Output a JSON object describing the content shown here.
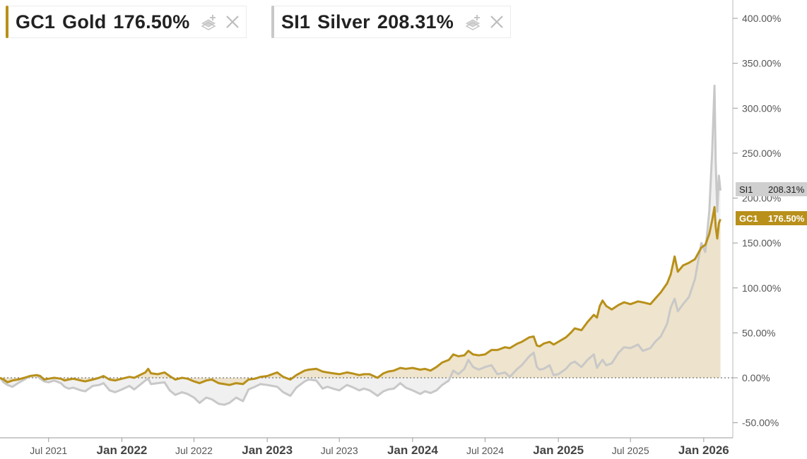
{
  "legend": [
    {
      "ticker": "GC1",
      "name": "Gold",
      "change": "176.50%",
      "color": "#b8901a"
    },
    {
      "ticker": "SI1",
      "name": "Silver",
      "change": "208.31%",
      "color": "#c8c8c8"
    }
  ],
  "chart_data": {
    "type": "line",
    "y_unit": "percent change",
    "yticks": [
      "400.00%",
      "350.00%",
      "300.00%",
      "250.00%",
      "200.00%",
      "150.00%",
      "100.00%",
      "50.00%",
      "0.00%",
      "-50.00%"
    ],
    "ytick_values": [
      400,
      350,
      300,
      250,
      200,
      150,
      100,
      50,
      0,
      -50
    ],
    "ylim": [
      -65,
      420
    ],
    "xlim": [
      "2021-03-01",
      "2026-03-15"
    ],
    "xticks": [
      {
        "label": "Jul 2021",
        "date": "2021-07-01",
        "major": false
      },
      {
        "label": "Jan 2022",
        "date": "2022-01-01",
        "major": true
      },
      {
        "label": "Jul 2022",
        "date": "2022-07-01",
        "major": false
      },
      {
        "label": "Jan 2023",
        "date": "2023-01-01",
        "major": true
      },
      {
        "label": "Jul 2023",
        "date": "2023-07-01",
        "major": false
      },
      {
        "label": "Jan 2024",
        "date": "2024-01-01",
        "major": true
      },
      {
        "label": "Jul 2024",
        "date": "2024-07-01",
        "major": false
      },
      {
        "label": "Jan 2025",
        "date": "2025-01-01",
        "major": true
      },
      {
        "label": "Jul 2025",
        "date": "2025-07-01",
        "major": false
      },
      {
        "label": "Jan 2026",
        "date": "2026-01-01",
        "major": true
      }
    ],
    "zero_line": true,
    "series": [
      {
        "name": "GC1",
        "color": "#b8901a",
        "fill": "#ecdfc4",
        "end_label": "176.50%",
        "points": [
          [
            "2021-03-01",
            0
          ],
          [
            "2021-03-10",
            -2
          ],
          [
            "2021-03-20",
            -5
          ],
          [
            "2021-04-01",
            -3
          ],
          [
            "2021-04-15",
            -2
          ],
          [
            "2021-05-01",
            0
          ],
          [
            "2021-05-15",
            2
          ],
          [
            "2021-06-01",
            3
          ],
          [
            "2021-06-10",
            2
          ],
          [
            "2021-06-20",
            -2
          ],
          [
            "2021-07-01",
            -1
          ],
          [
            "2021-07-15",
            0
          ],
          [
            "2021-08-01",
            -1
          ],
          [
            "2021-08-10",
            -3
          ],
          [
            "2021-08-20",
            -2
          ],
          [
            "2021-09-01",
            -1
          ],
          [
            "2021-09-20",
            -3
          ],
          [
            "2021-10-01",
            -4
          ],
          [
            "2021-10-20",
            -2
          ],
          [
            "2021-11-05",
            0
          ],
          [
            "2021-11-16",
            2
          ],
          [
            "2021-12-01",
            -2
          ],
          [
            "2021-12-15",
            -3
          ],
          [
            "2022-01-01",
            -1
          ],
          [
            "2022-01-20",
            1
          ],
          [
            "2022-02-01",
            0
          ],
          [
            "2022-02-15",
            3
          ],
          [
            "2022-03-01",
            6
          ],
          [
            "2022-03-08",
            10
          ],
          [
            "2022-03-15",
            5
          ],
          [
            "2022-04-01",
            4
          ],
          [
            "2022-04-18",
            6
          ],
          [
            "2022-05-01",
            2
          ],
          [
            "2022-05-15",
            -2
          ],
          [
            "2022-06-01",
            0
          ],
          [
            "2022-06-15",
            -1
          ],
          [
            "2022-07-01",
            -4
          ],
          [
            "2022-07-15",
            -6
          ],
          [
            "2022-08-01",
            -3
          ],
          [
            "2022-08-15",
            -2
          ],
          [
            "2022-09-01",
            -6
          ],
          [
            "2022-09-15",
            -7
          ],
          [
            "2022-09-28",
            -8
          ],
          [
            "2022-10-15",
            -6
          ],
          [
            "2022-11-01",
            -7
          ],
          [
            "2022-11-15",
            -2
          ],
          [
            "2022-12-01",
            -1
          ],
          [
            "2022-12-15",
            1
          ],
          [
            "2023-01-01",
            2
          ],
          [
            "2023-01-26",
            6
          ],
          [
            "2023-02-10",
            1
          ],
          [
            "2023-02-28",
            -2
          ],
          [
            "2023-03-15",
            3
          ],
          [
            "2023-04-05",
            8
          ],
          [
            "2023-04-15",
            9
          ],
          [
            "2023-05-04",
            10
          ],
          [
            "2023-05-20",
            7
          ],
          [
            "2023-06-01",
            6
          ],
          [
            "2023-06-15",
            5
          ],
          [
            "2023-07-01",
            4
          ],
          [
            "2023-07-20",
            6
          ],
          [
            "2023-08-01",
            5
          ],
          [
            "2023-08-20",
            3
          ],
          [
            "2023-09-01",
            4
          ],
          [
            "2023-09-15",
            4
          ],
          [
            "2023-10-05",
            0
          ],
          [
            "2023-10-20",
            5
          ],
          [
            "2023-11-01",
            7
          ],
          [
            "2023-11-15",
            8
          ],
          [
            "2023-12-01",
            11
          ],
          [
            "2023-12-15",
            10
          ],
          [
            "2024-01-01",
            11
          ],
          [
            "2024-01-20",
            9
          ],
          [
            "2024-02-01",
            10
          ],
          [
            "2024-02-15",
            8
          ],
          [
            "2024-03-01",
            12
          ],
          [
            "2024-03-15",
            17
          ],
          [
            "2024-04-01",
            20
          ],
          [
            "2024-04-12",
            26
          ],
          [
            "2024-04-25",
            24
          ],
          [
            "2024-05-10",
            25
          ],
          [
            "2024-05-20",
            30
          ],
          [
            "2024-06-01",
            26
          ],
          [
            "2024-06-15",
            25
          ],
          [
            "2024-07-01",
            26
          ],
          [
            "2024-07-17",
            31
          ],
          [
            "2024-08-01",
            31
          ],
          [
            "2024-08-20",
            34
          ],
          [
            "2024-09-01",
            33
          ],
          [
            "2024-09-20",
            38
          ],
          [
            "2024-10-01",
            40
          ],
          [
            "2024-10-20",
            45
          ],
          [
            "2024-10-31",
            46
          ],
          [
            "2024-11-08",
            36
          ],
          [
            "2024-11-15",
            35
          ],
          [
            "2024-11-25",
            38
          ],
          [
            "2024-12-10",
            40
          ],
          [
            "2024-12-20",
            37
          ],
          [
            "2025-01-01",
            40
          ],
          [
            "2025-01-20",
            45
          ],
          [
            "2025-02-01",
            50
          ],
          [
            "2025-02-11",
            55
          ],
          [
            "2025-02-28",
            53
          ],
          [
            "2025-03-15",
            62
          ],
          [
            "2025-03-31",
            70
          ],
          [
            "2025-04-08",
            67
          ],
          [
            "2025-04-15",
            80
          ],
          [
            "2025-04-22",
            86
          ],
          [
            "2025-05-01",
            80
          ],
          [
            "2025-05-15",
            76
          ],
          [
            "2025-06-01",
            81
          ],
          [
            "2025-06-15",
            84
          ],
          [
            "2025-07-01",
            82
          ],
          [
            "2025-07-20",
            85
          ],
          [
            "2025-08-01",
            84
          ],
          [
            "2025-08-20",
            82
          ],
          [
            "2025-09-01",
            88
          ],
          [
            "2025-09-15",
            95
          ],
          [
            "2025-10-01",
            105
          ],
          [
            "2025-10-10",
            115
          ],
          [
            "2025-10-20",
            135
          ],
          [
            "2025-10-28",
            118
          ],
          [
            "2025-11-10",
            125
          ],
          [
            "2025-11-25",
            128
          ],
          [
            "2025-12-10",
            132
          ],
          [
            "2025-12-26",
            145
          ],
          [
            "2026-01-05",
            148
          ],
          [
            "2026-01-15",
            160
          ],
          [
            "2026-01-22",
            175
          ],
          [
            "2026-01-28",
            190
          ],
          [
            "2026-01-31",
            168
          ],
          [
            "2026-02-04",
            155
          ],
          [
            "2026-02-08",
            172
          ],
          [
            "2026-02-12",
            176.5
          ]
        ]
      },
      {
        "name": "SI1",
        "color": "#c8c8c8",
        "fill": "#eeeeee",
        "end_label": "208.31%",
        "points": [
          [
            "2021-03-01",
            0
          ],
          [
            "2021-03-10",
            -5
          ],
          [
            "2021-03-20",
            -8
          ],
          [
            "2021-04-01",
            -10
          ],
          [
            "2021-04-15",
            -6
          ],
          [
            "2021-05-01",
            -2
          ],
          [
            "2021-05-15",
            2
          ],
          [
            "2021-06-01",
            3
          ],
          [
            "2021-06-10",
            -1
          ],
          [
            "2021-06-20",
            -4
          ],
          [
            "2021-07-01",
            -5
          ],
          [
            "2021-07-15",
            -3
          ],
          [
            "2021-08-01",
            -6
          ],
          [
            "2021-08-10",
            -10
          ],
          [
            "2021-08-20",
            -12
          ],
          [
            "2021-09-01",
            -11
          ],
          [
            "2021-09-20",
            -14
          ],
          [
            "2021-10-01",
            -15
          ],
          [
            "2021-10-20",
            -9
          ],
          [
            "2021-11-05",
            -8
          ],
          [
            "2021-11-16",
            -6
          ],
          [
            "2021-12-01",
            -14
          ],
          [
            "2021-12-15",
            -16
          ],
          [
            "2022-01-01",
            -13
          ],
          [
            "2022-01-20",
            -9
          ],
          [
            "2022-02-01",
            -13
          ],
          [
            "2022-02-15",
            -8
          ],
          [
            "2022-03-01",
            -3
          ],
          [
            "2022-03-08",
            -1
          ],
          [
            "2022-03-15",
            -7
          ],
          [
            "2022-04-01",
            -6
          ],
          [
            "2022-04-18",
            -5
          ],
          [
            "2022-05-01",
            -14
          ],
          [
            "2022-05-15",
            -19
          ],
          [
            "2022-06-01",
            -16
          ],
          [
            "2022-06-15",
            -18
          ],
          [
            "2022-07-01",
            -22
          ],
          [
            "2022-07-15",
            -28
          ],
          [
            "2022-08-01",
            -22
          ],
          [
            "2022-08-15",
            -24
          ],
          [
            "2022-09-01",
            -29
          ],
          [
            "2022-09-15",
            -30
          ],
          [
            "2022-09-28",
            -28
          ],
          [
            "2022-10-15",
            -22
          ],
          [
            "2022-11-01",
            -26
          ],
          [
            "2022-11-15",
            -13
          ],
          [
            "2022-12-01",
            -10
          ],
          [
            "2022-12-15",
            -7
          ],
          [
            "2023-01-01",
            -8
          ],
          [
            "2023-01-26",
            -10
          ],
          [
            "2023-02-10",
            -16
          ],
          [
            "2023-02-28",
            -20
          ],
          [
            "2023-03-15",
            -11
          ],
          [
            "2023-04-05",
            -4
          ],
          [
            "2023-04-15",
            -2
          ],
          [
            "2023-05-04",
            -3
          ],
          [
            "2023-05-20",
            -12
          ],
          [
            "2023-06-01",
            -10
          ],
          [
            "2023-06-15",
            -12
          ],
          [
            "2023-07-01",
            -14
          ],
          [
            "2023-07-20",
            -8
          ],
          [
            "2023-08-01",
            -10
          ],
          [
            "2023-08-20",
            -14
          ],
          [
            "2023-09-01",
            -12
          ],
          [
            "2023-09-15",
            -14
          ],
          [
            "2023-10-05",
            -20
          ],
          [
            "2023-10-20",
            -15
          ],
          [
            "2023-11-01",
            -13
          ],
          [
            "2023-11-15",
            -12
          ],
          [
            "2023-12-01",
            -6
          ],
          [
            "2023-12-15",
            -11
          ],
          [
            "2024-01-01",
            -14
          ],
          [
            "2024-01-20",
            -18
          ],
          [
            "2024-02-01",
            -15
          ],
          [
            "2024-02-15",
            -17
          ],
          [
            "2024-03-01",
            -14
          ],
          [
            "2024-03-15",
            -8
          ],
          [
            "2024-04-01",
            -3
          ],
          [
            "2024-04-12",
            8
          ],
          [
            "2024-04-25",
            4
          ],
          [
            "2024-05-10",
            10
          ],
          [
            "2024-05-20",
            20
          ],
          [
            "2024-06-01",
            12
          ],
          [
            "2024-06-15",
            9
          ],
          [
            "2024-07-01",
            12
          ],
          [
            "2024-07-17",
            14
          ],
          [
            "2024-08-01",
            4
          ],
          [
            "2024-08-20",
            6
          ],
          [
            "2024-09-01",
            1
          ],
          [
            "2024-09-20",
            10
          ],
          [
            "2024-10-01",
            14
          ],
          [
            "2024-10-20",
            24
          ],
          [
            "2024-10-31",
            28
          ],
          [
            "2024-11-08",
            12
          ],
          [
            "2024-11-15",
            9
          ],
          [
            "2024-11-25",
            10
          ],
          [
            "2024-12-10",
            14
          ],
          [
            "2024-12-20",
            3
          ],
          [
            "2025-01-01",
            4
          ],
          [
            "2025-01-20",
            10
          ],
          [
            "2025-02-01",
            16
          ],
          [
            "2025-02-11",
            18
          ],
          [
            "2025-02-28",
            12
          ],
          [
            "2025-03-15",
            20
          ],
          [
            "2025-03-31",
            26
          ],
          [
            "2025-04-08",
            11
          ],
          [
            "2025-04-15",
            16
          ],
          [
            "2025-04-22",
            20
          ],
          [
            "2025-05-01",
            14
          ],
          [
            "2025-05-15",
            16
          ],
          [
            "2025-06-01",
            28
          ],
          [
            "2025-06-15",
            34
          ],
          [
            "2025-07-01",
            33
          ],
          [
            "2025-07-20",
            37
          ],
          [
            "2025-08-01",
            30
          ],
          [
            "2025-08-20",
            33
          ],
          [
            "2025-09-01",
            40
          ],
          [
            "2025-09-15",
            46
          ],
          [
            "2025-10-01",
            60
          ],
          [
            "2025-10-10",
            78
          ],
          [
            "2025-10-20",
            88
          ],
          [
            "2025-10-28",
            74
          ],
          [
            "2025-11-10",
            82
          ],
          [
            "2025-11-25",
            90
          ],
          [
            "2025-12-10",
            110
          ],
          [
            "2025-12-26",
            150
          ],
          [
            "2026-01-05",
            140
          ],
          [
            "2026-01-15",
            185
          ],
          [
            "2026-01-22",
            250
          ],
          [
            "2026-01-28",
            325
          ],
          [
            "2026-01-31",
            240
          ],
          [
            "2026-02-04",
            185
          ],
          [
            "2026-02-08",
            225
          ],
          [
            "2026-02-12",
            208.31
          ]
        ]
      }
    ]
  }
}
